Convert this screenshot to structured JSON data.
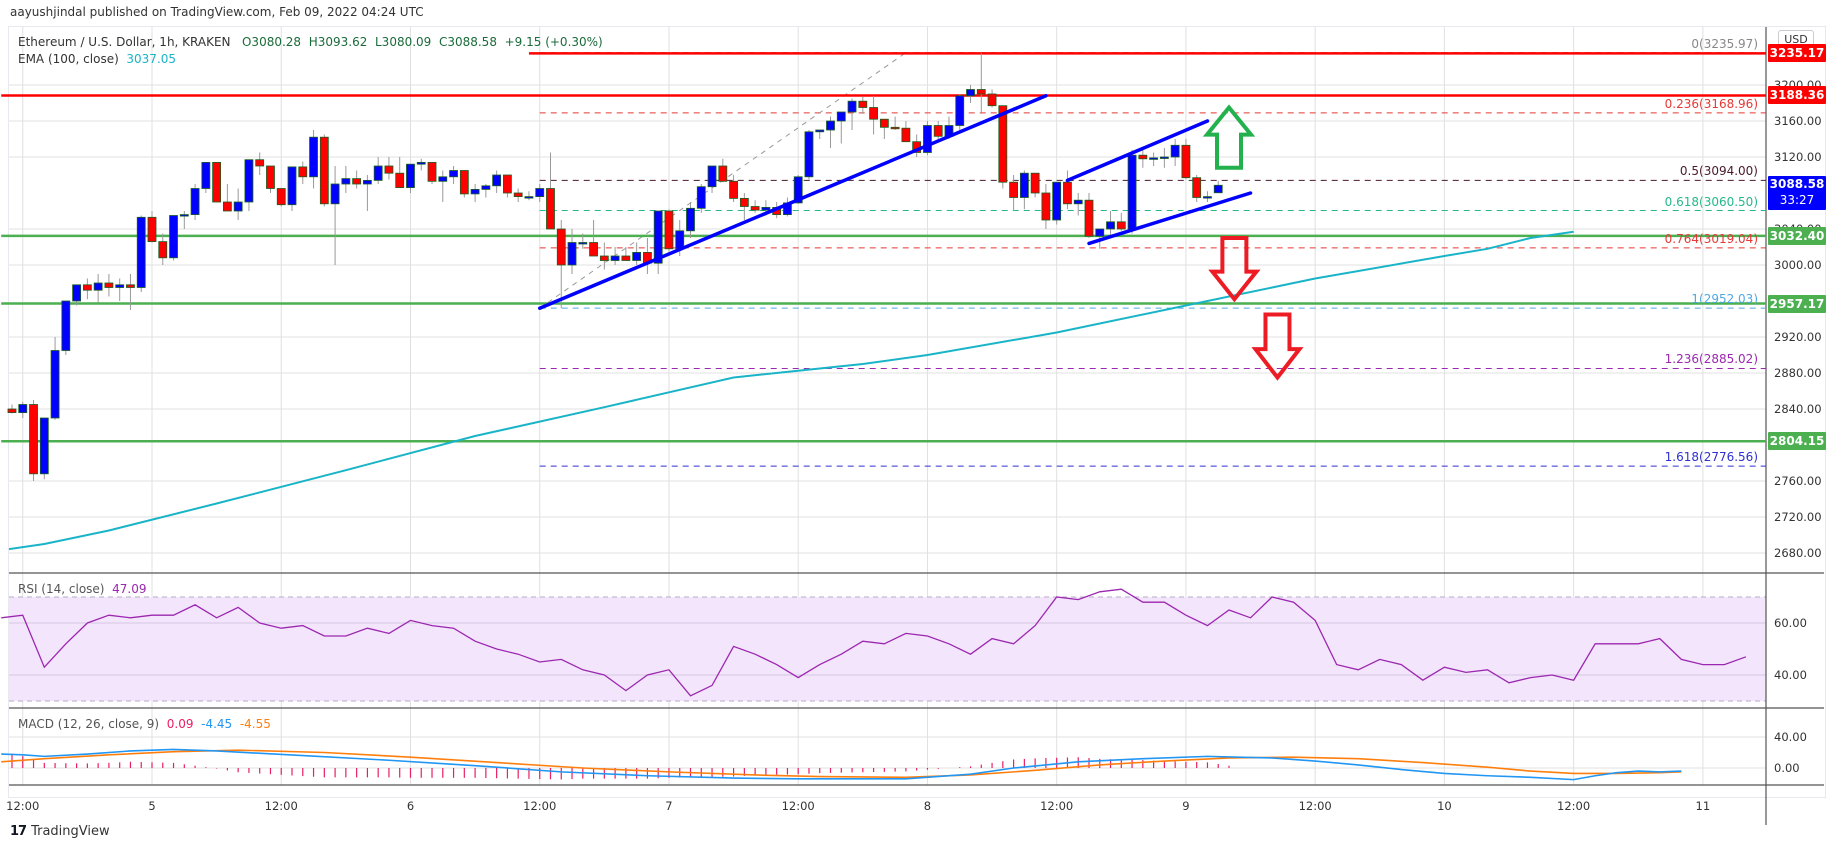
{
  "publisher": "aayushjindal published on TradingView.com, Feb 09, 2022 04:24 UTC",
  "legend": {
    "symbol": "Ethereum / U.S. Dollar, 1h, KRAKEN",
    "open": "O3080.28",
    "high": "H3093.62",
    "low": "L3080.09",
    "close": "C3088.58",
    "change": "+9.15 (+0.30%)",
    "ema_label": "EMA (100, close)",
    "ema_value": "3037.05"
  },
  "rsi_legend": {
    "label": "RSI (14, close)",
    "value": "47.09"
  },
  "macd_legend": {
    "label": "MACD (12, 26, close, 9)",
    "hist": "0.09",
    "macd": "-4.45",
    "signal": "-4.55"
  },
  "currency": "USD",
  "price_tags": [
    {
      "value": "3235.17",
      "price": 3235.17,
      "color": "#ff0000"
    },
    {
      "value": "3188.36",
      "price": 3188.36,
      "color": "#ff0000"
    },
    {
      "value": "3032.40",
      "price": 3032.4,
      "color": "#4caf50"
    },
    {
      "value": "2957.17",
      "price": 2957.17,
      "color": "#4caf50"
    },
    {
      "value": "2804.15",
      "price": 2804.15,
      "color": "#4caf50"
    }
  ],
  "last_price_tag": {
    "value": "3088.58",
    "countdown": "33:27",
    "color": "#0000ff"
  },
  "fib_levels": [
    {
      "label": "0(3235.97)",
      "price": 3235.97,
      "color": "#888888"
    },
    {
      "label": "0.236(3168.96)",
      "price": 3168.96,
      "color": "#e53935"
    },
    {
      "label": "0.5(3094.00)",
      "price": 3094.0,
      "color": "#4a1a2c"
    },
    {
      "label": "0.618(3060.50)",
      "price": 3060.5,
      "color": "#26b88a"
    },
    {
      "label": "0.764(3019.04)",
      "price": 3019.04,
      "color": "#e53935"
    },
    {
      "label": "1(2952.03)",
      "price": 2952.03,
      "color": "#4fa8e0"
    },
    {
      "label": "1.236(2885.02)",
      "price": 2885.02,
      "color": "#9c27b0"
    },
    {
      "label": "1.618(2776.56)",
      "price": 2776.56,
      "color": "#3030d0"
    }
  ],
  "footer": {
    "brand": "TradingView",
    "mark": "17"
  },
  "chart_data": {
    "type": "candlestick",
    "title": "Ethereum / U.S. Dollar, 1h, KRAKEN",
    "price_axis": {
      "ticks": [
        3200,
        3160,
        3120,
        3040,
        3000,
        2920,
        2880,
        2840,
        2760,
        2720,
        2680
      ],
      "tick_labels": [
        "3200.00",
        "3160.00",
        "3120.00",
        "3040.00",
        "3000.00",
        "2920.00",
        "2880.00",
        "2840.00",
        "2760.00",
        "2720.00",
        "2680.00"
      ]
    },
    "time_axis": {
      "labels": [
        "12:00",
        "5",
        "12:00",
        "6",
        "12:00",
        "7",
        "12:00",
        "8",
        "12:00",
        "9",
        "12:00",
        "10",
        "12:00",
        "11"
      ],
      "hours_from_feb5": [
        -12,
        0,
        12,
        24,
        36,
        48,
        60,
        72,
        84,
        96,
        108,
        120,
        132,
        144
      ]
    },
    "rsi_axis": {
      "ticks": [
        60,
        40
      ],
      "tick_labels": [
        "60.00",
        "40.00"
      ],
      "band": [
        30,
        70
      ]
    },
    "macd_axis": {
      "ticks": [
        40,
        0
      ],
      "tick_labels": [
        "40.00",
        "0.00"
      ]
    },
    "candles_hour_start": -13,
    "candles": [
      [
        2840,
        2845,
        2835,
        2836
      ],
      [
        2836,
        2848,
        2830,
        2845
      ],
      [
        2845,
        2850,
        2760,
        2768
      ],
      [
        2768,
        2830,
        2762,
        2830
      ],
      [
        2830,
        2920,
        2828,
        2905
      ],
      [
        2905,
        2950,
        2900,
        2960
      ],
      [
        2960,
        2975,
        2955,
        2978
      ],
      [
        2978,
        2985,
        2962,
        2972
      ],
      [
        2972,
        2990,
        2958,
        2980
      ],
      [
        2980,
        2990,
        2965,
        2975
      ],
      [
        2975,
        2985,
        2960,
        2978
      ],
      [
        2978,
        2990,
        2950,
        2975
      ],
      [
        2975,
        3055,
        2970,
        3053
      ],
      [
        3053,
        3060,
        3025,
        3026
      ],
      [
        3026,
        3035,
        3000,
        3008
      ],
      [
        3008,
        3055,
        3005,
        3055
      ],
      [
        3055,
        3060,
        3040,
        3056
      ],
      [
        3056,
        3090,
        3050,
        3085
      ],
      [
        3085,
        3110,
        3080,
        3114
      ],
      [
        3114,
        3110,
        3070,
        3070
      ],
      [
        3070,
        3090,
        3060,
        3060
      ],
      [
        3060,
        3085,
        3050,
        3070
      ],
      [
        3070,
        3105,
        3060,
        3117
      ],
      [
        3117,
        3125,
        3100,
        3110
      ],
      [
        3110,
        3105,
        3080,
        3085
      ],
      [
        3085,
        3085,
        3065,
        3067
      ],
      [
        3067,
        3105,
        3060,
        3109
      ],
      [
        3109,
        3115,
        3090,
        3098
      ],
      [
        3098,
        3150,
        3085,
        3142
      ],
      [
        3142,
        3145,
        3065,
        3068
      ],
      [
        3068,
        3110,
        3000,
        3090
      ],
      [
        3090,
        3110,
        3080,
        3096
      ],
      [
        3096,
        3105,
        3085,
        3090
      ],
      [
        3090,
        3100,
        3060,
        3094
      ],
      [
        3094,
        3120,
        3090,
        3110
      ],
      [
        3110,
        3120,
        3095,
        3102
      ],
      [
        3102,
        3120,
        3095,
        3086
      ],
      [
        3086,
        3110,
        3080,
        3112
      ],
      [
        3112,
        3118,
        3105,
        3114
      ],
      [
        3114,
        3112,
        3090,
        3093
      ],
      [
        3093,
        3105,
        3070,
        3098
      ],
      [
        3098,
        3110,
        3090,
        3105
      ],
      [
        3105,
        3100,
        3075,
        3079
      ],
      [
        3079,
        3090,
        3070,
        3084
      ],
      [
        3084,
        3090,
        3075,
        3088
      ],
      [
        3088,
        3105,
        3080,
        3100
      ],
      [
        3100,
        3095,
        3075,
        3080
      ],
      [
        3080,
        3085,
        3070,
        3076
      ],
      [
        3076,
        3082,
        3072,
        3076
      ],
      [
        3076,
        3090,
        3070,
        3085
      ],
      [
        3085,
        3125,
        3055,
        3040
      ],
      [
        3040,
        3050,
        2952,
        3000
      ],
      [
        3000,
        3040,
        2990,
        3025
      ],
      [
        3025,
        3035,
        3018,
        3025
      ],
      [
        3025,
        3050,
        3010,
        3010
      ],
      [
        3010,
        3025,
        2995,
        3005
      ],
      [
        3005,
        3020,
        3000,
        3010
      ],
      [
        3010,
        3020,
        3005,
        3005
      ],
      [
        3005,
        3025,
        3000,
        3014
      ],
      [
        3014,
        3030,
        2990,
        3002
      ],
      [
        3002,
        3060,
        2990,
        3060
      ],
      [
        3060,
        3062,
        3015,
        3018
      ],
      [
        3018,
        3050,
        3010,
        3038
      ],
      [
        3038,
        3070,
        3030,
        3063
      ],
      [
        3063,
        3090,
        3058,
        3087
      ],
      [
        3087,
        3110,
        3080,
        3110
      ],
      [
        3110,
        3118,
        3092,
        3093
      ],
      [
        3093,
        3100,
        3070,
        3074
      ],
      [
        3074,
        3080,
        3050,
        3065
      ],
      [
        3065,
        3072,
        3058,
        3061
      ],
      [
        3061,
        3072,
        3055,
        3064
      ],
      [
        3064,
        3070,
        3052,
        3056
      ],
      [
        3056,
        3075,
        3054,
        3069
      ],
      [
        3069,
        3100,
        3068,
        3098
      ],
      [
        3098,
        3150,
        3095,
        3148
      ],
      [
        3148,
        3150,
        3140,
        3150
      ],
      [
        3150,
        3165,
        3130,
        3160
      ],
      [
        3160,
        3170,
        3135,
        3170
      ],
      [
        3170,
        3185,
        3150,
        3182
      ],
      [
        3182,
        3187,
        3168,
        3175
      ],
      [
        3175,
        3188,
        3145,
        3162
      ],
      [
        3162,
        3160,
        3140,
        3153
      ],
      [
        3153,
        3165,
        3150,
        3152
      ],
      [
        3152,
        3160,
        3137,
        3137
      ],
      [
        3137,
        3145,
        3120,
        3125
      ],
      [
        3125,
        3160,
        3122,
        3155
      ],
      [
        3155,
        3160,
        3140,
        3143
      ],
      [
        3143,
        3165,
        3140,
        3155
      ],
      [
        3155,
        3190,
        3150,
        3188
      ],
      [
        3188,
        3200,
        3180,
        3195
      ],
      [
        3195,
        3236,
        3168,
        3190
      ],
      [
        3190,
        3195,
        3175,
        3177
      ],
      [
        3177,
        3170,
        3085,
        3092
      ],
      [
        3092,
        3100,
        3060,
        3075
      ],
      [
        3075,
        3105,
        3062,
        3102
      ],
      [
        3102,
        3100,
        3075,
        3080
      ],
      [
        3080,
        3090,
        3040,
        3050
      ],
      [
        3050,
        3090,
        3045,
        3092
      ],
      [
        3092,
        3105,
        3062,
        3068
      ],
      [
        3068,
        3080,
        3055,
        3072
      ],
      [
        3072,
        3080,
        3030,
        3032
      ],
      [
        3032,
        3040,
        3018,
        3040
      ],
      [
        3040,
        3060,
        3030,
        3048
      ],
      [
        3048,
        3058,
        3038,
        3040
      ],
      [
        3040,
        3128,
        3035,
        3122
      ],
      [
        3122,
        3130,
        3108,
        3118
      ],
      [
        3118,
        3125,
        3110,
        3119
      ],
      [
        3119,
        3130,
        3108,
        3120
      ],
      [
        3120,
        3140,
        3110,
        3133
      ],
      [
        3133,
        3140,
        3095,
        3097
      ],
      [
        3097,
        3100,
        3070,
        3075
      ],
      [
        3075,
        3082,
        3070,
        3076
      ],
      [
        3080.28,
        3093.62,
        3080.09,
        3088.58
      ]
    ],
    "ema100": [
      [
        -14,
        2683
      ],
      [
        -10,
        2690
      ],
      [
        -4,
        2705
      ],
      [
        6,
        2735
      ],
      [
        18,
        2772
      ],
      [
        30,
        2810
      ],
      [
        42,
        2842
      ],
      [
        54,
        2875
      ],
      [
        66,
        2890
      ],
      [
        72,
        2900
      ],
      [
        84,
        2925
      ],
      [
        96,
        2955
      ],
      [
        108,
        2985
      ],
      [
        120,
        3010
      ],
      [
        124,
        3018
      ],
      [
        128,
        3030
      ],
      [
        132,
        3037
      ]
    ],
    "rsi": [
      [
        -14,
        62
      ],
      [
        -12,
        63
      ],
      [
        -10,
        43
      ],
      [
        -8,
        52
      ],
      [
        -6,
        60
      ],
      [
        -4,
        63
      ],
      [
        -2,
        62
      ],
      [
        0,
        63
      ],
      [
        2,
        63
      ],
      [
        4,
        67
      ],
      [
        6,
        62
      ],
      [
        8,
        66
      ],
      [
        10,
        60
      ],
      [
        12,
        58
      ],
      [
        14,
        59
      ],
      [
        16,
        55
      ],
      [
        18,
        55
      ],
      [
        20,
        58
      ],
      [
        22,
        56
      ],
      [
        24,
        61
      ],
      [
        26,
        59
      ],
      [
        28,
        58
      ],
      [
        30,
        53
      ],
      [
        32,
        50
      ],
      [
        34,
        48
      ],
      [
        36,
        45
      ],
      [
        38,
        46
      ],
      [
        40,
        42
      ],
      [
        42,
        40
      ],
      [
        44,
        34
      ],
      [
        46,
        40
      ],
      [
        48,
        42
      ],
      [
        50,
        32
      ],
      [
        52,
        36
      ],
      [
        54,
        51
      ],
      [
        56,
        48
      ],
      [
        58,
        44
      ],
      [
        60,
        39
      ],
      [
        62,
        44
      ],
      [
        64,
        48
      ],
      [
        66,
        53
      ],
      [
        68,
        52
      ],
      [
        70,
        56
      ],
      [
        72,
        55
      ],
      [
        74,
        52
      ],
      [
        76,
        48
      ],
      [
        78,
        54
      ],
      [
        80,
        52
      ],
      [
        82,
        59
      ],
      [
        84,
        70
      ],
      [
        86,
        69
      ],
      [
        88,
        72
      ],
      [
        90,
        73
      ],
      [
        92,
        68
      ],
      [
        94,
        68
      ],
      [
        96,
        63
      ],
      [
        98,
        59
      ],
      [
        100,
        65
      ],
      [
        102,
        62
      ],
      [
        104,
        70
      ],
      [
        106,
        68
      ],
      [
        108,
        61
      ],
      [
        110,
        44
      ],
      [
        112,
        42
      ],
      [
        114,
        46
      ],
      [
        116,
        44
      ],
      [
        118,
        38
      ],
      [
        120,
        43
      ],
      [
        122,
        41
      ],
      [
        124,
        42
      ],
      [
        126,
        37
      ],
      [
        128,
        39
      ],
      [
        130,
        40
      ],
      [
        132,
        38
      ],
      [
        134,
        52
      ],
      [
        136,
        52
      ],
      [
        138,
        52
      ],
      [
        140,
        54
      ],
      [
        142,
        46
      ],
      [
        144,
        44
      ],
      [
        146,
        44
      ],
      [
        148,
        47
      ]
    ],
    "macd_line": [
      [
        -14,
        18
      ],
      [
        -12,
        17
      ],
      [
        -10,
        15
      ],
      [
        -6,
        18
      ],
      [
        -2,
        22
      ],
      [
        2,
        24
      ],
      [
        6,
        22
      ],
      [
        14,
        16
      ],
      [
        22,
        10
      ],
      [
        30,
        3
      ],
      [
        38,
        -5
      ],
      [
        46,
        -10
      ],
      [
        54,
        -13
      ],
      [
        60,
        -14
      ],
      [
        70,
        -14
      ],
      [
        76,
        -8
      ],
      [
        80,
        0
      ],
      [
        86,
        8
      ],
      [
        92,
        12
      ],
      [
        98,
        15
      ],
      [
        104,
        13
      ],
      [
        108,
        9
      ],
      [
        112,
        4
      ],
      [
        116,
        -2
      ],
      [
        120,
        -7
      ],
      [
        124,
        -10
      ],
      [
        128,
        -12
      ],
      [
        132,
        -15
      ],
      [
        134,
        -10
      ],
      [
        136,
        -6
      ],
      [
        138,
        -4
      ],
      [
        140,
        -5
      ],
      [
        142,
        -4
      ]
    ],
    "macd_signal": [
      [
        -14,
        8
      ],
      [
        -10,
        12
      ],
      [
        -4,
        17
      ],
      [
        2,
        21
      ],
      [
        8,
        23
      ],
      [
        16,
        20
      ],
      [
        24,
        14
      ],
      [
        32,
        7
      ],
      [
        40,
        0
      ],
      [
        48,
        -5
      ],
      [
        56,
        -9
      ],
      [
        62,
        -11
      ],
      [
        70,
        -12
      ],
      [
        76,
        -9
      ],
      [
        82,
        -3
      ],
      [
        88,
        4
      ],
      [
        94,
        9
      ],
      [
        100,
        13
      ],
      [
        106,
        14
      ],
      [
        112,
        12
      ],
      [
        118,
        7
      ],
      [
        124,
        1
      ],
      [
        128,
        -4
      ],
      [
        132,
        -7
      ],
      [
        136,
        -7
      ],
      [
        140,
        -6
      ],
      [
        142,
        -5
      ]
    ]
  },
  "annotations": {
    "horizontal_lines": [
      {
        "price": 3235.17,
        "color": "#ff0000",
        "from_hour": 35
      },
      {
        "price": 3188.36,
        "color": "#ff0000",
        "from_hour": -14
      },
      {
        "price": 3032.4,
        "color": "#4caf50",
        "from_hour": -14
      },
      {
        "price": 2957.17,
        "color": "#4caf50",
        "from_hour": -14
      },
      {
        "price": 2804.15,
        "color": "#4caf50",
        "from_hour": -14
      }
    ],
    "trend_lines": [
      {
        "from": [
          36,
          2952
        ],
        "to": [
          83,
          3188
        ],
        "color": "#0000ff"
      },
      {
        "from": [
          85,
          3094
        ],
        "to": [
          98,
          3160
        ],
        "color": "#0000ff"
      },
      {
        "from": [
          87,
          3024
        ],
        "to": [
          102,
          3080
        ],
        "color": "#0000ff"
      }
    ],
    "fib_diagonal": {
      "from": [
        36,
        2952
      ],
      "to": [
        70,
        3236
      ]
    },
    "arrows": [
      {
        "dir": "up",
        "hour": 100,
        "price_top": 3175,
        "price_bottom": 3108,
        "color": "#22b14c"
      },
      {
        "dir": "down",
        "hour": 100.5,
        "price_top": 3030,
        "price_bottom": 2962,
        "color": "#ed1c24"
      },
      {
        "dir": "down",
        "hour": 104.5,
        "price_top": 2945,
        "price_bottom": 2875,
        "color": "#ed1c24"
      }
    ]
  }
}
